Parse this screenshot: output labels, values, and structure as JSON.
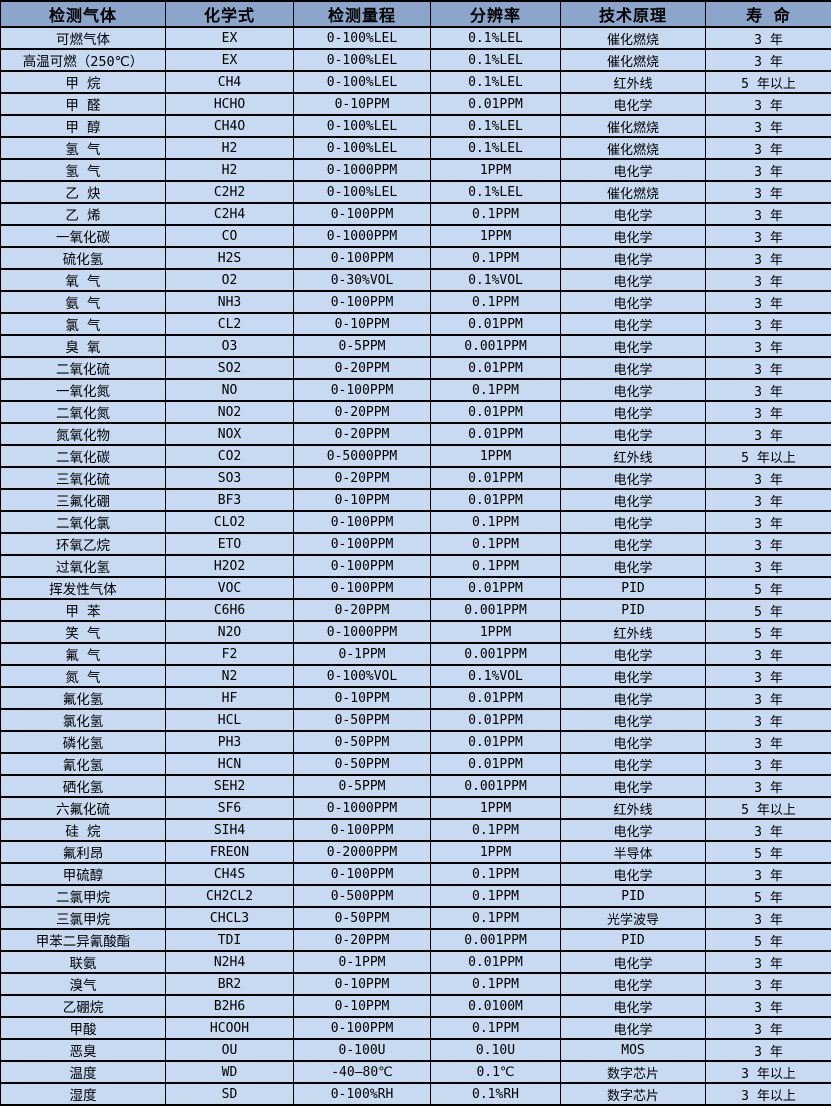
{
  "colors": {
    "header_bg": "#8CA5CB",
    "row_bg": "#C7DAF1",
    "border": "#000000",
    "text": "#000000"
  },
  "table": {
    "columns": [
      "检测气体",
      "化学式",
      "检测量程",
      "分辨率",
      "技术原理",
      "寿 命"
    ],
    "rows": [
      [
        "可燃气体",
        "EX",
        "0-100%LEL",
        "0.1%LEL",
        "催化燃烧",
        "3 年"
      ],
      [
        "高温可燃（250℃）",
        "EX",
        "0-100%LEL",
        "0.1%LEL",
        "催化燃烧",
        "3 年"
      ],
      [
        "甲 烷",
        "CH4",
        "0-100%LEL",
        "0.1%LEL",
        "红外线",
        "5 年以上"
      ],
      [
        "甲 醛",
        "HCHO",
        "0-10PPM",
        "0.01PPM",
        "电化学",
        "3 年"
      ],
      [
        "甲 醇",
        "CH4O",
        "0-100%LEL",
        "0.1%LEL",
        "催化燃烧",
        "3 年"
      ],
      [
        "氢 气",
        "H2",
        "0-100%LEL",
        "0.1%LEL",
        "催化燃烧",
        "3 年"
      ],
      [
        "氢 气",
        "H2",
        "0-1000PPM",
        "1PPM",
        "电化学",
        "3 年"
      ],
      [
        "乙 炔",
        "C2H2",
        "0-100%LEL",
        "0.1%LEL",
        "催化燃烧",
        "3 年"
      ],
      [
        "乙 烯",
        "C2H4",
        "0-100PPM",
        "0.1PPM",
        "电化学",
        "3 年"
      ],
      [
        "一氧化碳",
        "CO",
        "0-1000PPM",
        "1PPM",
        "电化学",
        "3 年"
      ],
      [
        "硫化氢",
        "H2S",
        "0-100PPM",
        "0.1PPM",
        "电化学",
        "3 年"
      ],
      [
        "氧 气",
        "O2",
        "0-30%VOL",
        "0.1%VOL",
        "电化学",
        "3 年"
      ],
      [
        "氨 气",
        "NH3",
        "0-100PPM",
        "0.1PPM",
        "电化学",
        "3 年"
      ],
      [
        "氯 气",
        "CL2",
        "0-10PPM",
        "0.01PPM",
        "电化学",
        "3 年"
      ],
      [
        "臭 氧",
        "O3",
        "0-5PPM",
        "0.001PPM",
        "电化学",
        "3 年"
      ],
      [
        "二氧化硫",
        "SO2",
        "0-20PPM",
        "0.01PPM",
        "电化学",
        "3 年"
      ],
      [
        "一氧化氮",
        "NO",
        "0-100PPM",
        "0.1PPM",
        "电化学",
        "3 年"
      ],
      [
        "二氧化氮",
        "NO2",
        "0-20PPM",
        "0.01PPM",
        "电化学",
        "3 年"
      ],
      [
        "氮氧化物",
        "NOX",
        "0-20PPM",
        "0.01PPM",
        "电化学",
        "3 年"
      ],
      [
        "二氧化碳",
        "CO2",
        "0-5000PPM",
        "1PPM",
        "红外线",
        "5 年以上"
      ],
      [
        "三氧化硫",
        "SO3",
        "0-20PPM",
        "0.01PPM",
        "电化学",
        "3 年"
      ],
      [
        "三氟化硼",
        "BF3",
        "0-10PPM",
        "0.01PPM",
        "电化学",
        "3 年"
      ],
      [
        "二氧化氯",
        "CLO2",
        "0-100PPM",
        "0.1PPM",
        "电化学",
        "3 年"
      ],
      [
        "环氧乙烷",
        "ETO",
        "0-100PPM",
        "0.1PPM",
        "电化学",
        "3 年"
      ],
      [
        "过氧化氢",
        "H2O2",
        "0-100PPM",
        "0.1PPM",
        "电化学",
        "3 年"
      ],
      [
        "挥发性气体",
        "VOC",
        "0-100PPM",
        "0.01PPM",
        "PID",
        "5 年"
      ],
      [
        "甲 苯",
        "C6H6",
        "0-20PPM",
        "0.001PPM",
        "PID",
        "5 年"
      ],
      [
        "笑 气",
        "N2O",
        "0-1000PPM",
        "1PPM",
        "红外线",
        "5 年"
      ],
      [
        "氟 气",
        "F2",
        "0-1PPM",
        "0.001PPM",
        "电化学",
        "3 年"
      ],
      [
        "氮 气",
        "N2",
        "0-100%VOL",
        "0.1%VOL",
        "电化学",
        "3 年"
      ],
      [
        "氟化氢",
        "HF",
        "0-10PPM",
        "0.01PPM",
        "电化学",
        "3 年"
      ],
      [
        "氯化氢",
        "HCL",
        "0-50PPM",
        "0.01PPM",
        "电化学",
        "3 年"
      ],
      [
        "磷化氢",
        "PH3",
        "0-50PPM",
        "0.01PPM",
        "电化学",
        "3 年"
      ],
      [
        "氰化氢",
        "HCN",
        "0-50PPM",
        "0.01PPM",
        "电化学",
        "3 年"
      ],
      [
        "硒化氢",
        "SEH2",
        "0-5PPM",
        "0.001PPM",
        "电化学",
        "3 年"
      ],
      [
        "六氟化硫",
        "SF6",
        "0-1000PPM",
        "1PPM",
        "红外线",
        "5 年以上"
      ],
      [
        "硅 烷",
        "SIH4",
        "0-100PPM",
        "0.1PPM",
        "电化学",
        "3 年"
      ],
      [
        "氟利昂",
        "FREON",
        "0-2000PPM",
        "1PPM",
        "半导体",
        "5 年"
      ],
      [
        "甲硫醇",
        "CH4S",
        "0-100PPM",
        "0.1PPM",
        "电化学",
        "3 年"
      ],
      [
        "二氯甲烷",
        "CH2CL2",
        "0-500PPM",
        "0.1PPM",
        "PID",
        "5 年"
      ],
      [
        "三氯甲烷",
        "CHCL3",
        "0-50PPM",
        "0.1PPM",
        "光学波导",
        "3 年"
      ],
      [
        "甲苯二异氰酸酯",
        "TDI",
        "0-20PPM",
        "0.001PPM",
        "PID",
        "5 年"
      ],
      [
        "联氨",
        "N2H4",
        "0-1PPM",
        "0.01PPM",
        "电化学",
        "3 年"
      ],
      [
        "溴气",
        "BR2",
        "0-10PPM",
        "0.1PPM",
        "电化学",
        "3 年"
      ],
      [
        "乙硼烷",
        "B2H6",
        "0-10PPM",
        "0.0100M",
        "电化学",
        "3 年"
      ],
      [
        "甲酸",
        "HCOOH",
        "0-100PPM",
        "0.1PPM",
        "电化学",
        "3 年"
      ],
      [
        "恶臭",
        "OU",
        "0-100U",
        "0.10U",
        "MOS",
        "3 年"
      ],
      [
        "温度",
        "WD",
        "-40—80℃",
        "0.1℃",
        "数字芯片",
        "3 年以上"
      ],
      [
        "湿度",
        "SD",
        "0-100%RH",
        "0.1%RH",
        "数字芯片",
        "3 年以上"
      ]
    ]
  }
}
